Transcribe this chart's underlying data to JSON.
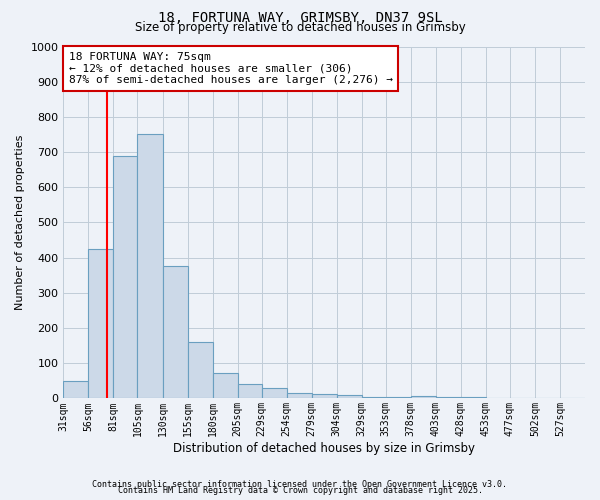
{
  "title": "18, FORTUNA WAY, GRIMSBY, DN37 9SL",
  "subtitle": "Size of property relative to detached houses in Grimsby",
  "xlabel": "Distribution of detached houses by size in Grimsby",
  "ylabel": "Number of detached properties",
  "bin_labels": [
    "31sqm",
    "56sqm",
    "81sqm",
    "105sqm",
    "130sqm",
    "155sqm",
    "180sqm",
    "205sqm",
    "229sqm",
    "254sqm",
    "279sqm",
    "304sqm",
    "329sqm",
    "353sqm",
    "378sqm",
    "403sqm",
    "428sqm",
    "453sqm",
    "477sqm",
    "502sqm",
    "527sqm"
  ],
  "bin_edges": [
    31,
    56,
    81,
    105,
    130,
    155,
    180,
    205,
    229,
    254,
    279,
    304,
    329,
    353,
    378,
    403,
    428,
    453,
    477,
    502,
    527,
    552
  ],
  "values": [
    50,
    425,
    690,
    750,
    375,
    160,
    72,
    40,
    30,
    15,
    12,
    10,
    5,
    3,
    8,
    5,
    5,
    1,
    1,
    1,
    1
  ],
  "bar_color": "#ccd9e8",
  "bar_edge_color": "#6a9fc0",
  "grid_color": "#c0ccd8",
  "background_color": "#eef2f8",
  "red_line_x": 75,
  "annotation_title": "18 FORTUNA WAY: 75sqm",
  "annotation_line1": "← 12% of detached houses are smaller (306)",
  "annotation_line2": "87% of semi-detached houses are larger (2,276) →",
  "annotation_box_color": "#ffffff",
  "annotation_box_edge_color": "#cc0000",
  "ylim": [
    0,
    1000
  ],
  "yticks": [
    0,
    100,
    200,
    300,
    400,
    500,
    600,
    700,
    800,
    900,
    1000
  ],
  "footer1": "Contains HM Land Registry data © Crown copyright and database right 2025.",
  "footer2": "Contains public sector information licensed under the Open Government Licence v3.0."
}
